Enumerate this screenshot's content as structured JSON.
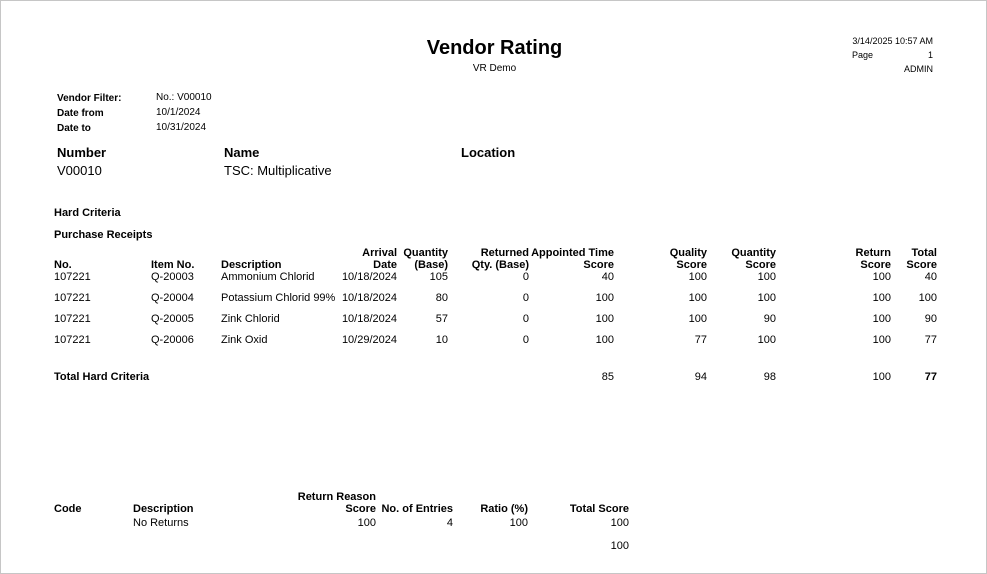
{
  "page": {
    "datetime": "3/14/2025 10:57 AM",
    "page_label": "Page",
    "page_number": "1",
    "username": "ADMIN",
    "title": "Vendor Rating",
    "subtitle": "VR Demo"
  },
  "filters": [
    {
      "label": "Vendor Filter:",
      "value": "No.: V00010"
    },
    {
      "label": "Date from",
      "value": "10/1/2024"
    },
    {
      "label": "Date to",
      "value": "10/31/2024"
    }
  ],
  "vendor": {
    "number_label": "Number",
    "number": "V00010",
    "name_label": "Name",
    "name": "TSC: Multiplicative",
    "location_label": "Location",
    "location": ""
  },
  "hard_criteria": {
    "section_title": "Hard Criteria",
    "subsection_title": "Purchase Receipts",
    "columns": [
      "No.",
      "Item No.",
      "Description",
      "Arrival\nDate",
      "Quantity\n(Base)",
      "Returned\nQty. (Base)",
      "Appointed Time\nScore",
      "Quality\nScore",
      "Quantity\nScore",
      "Return\nScore",
      "Total\nScore"
    ],
    "rows": [
      [
        "107221",
        "Q-20003",
        "Ammonium Chlorid",
        "10/18/2024",
        "105",
        "0",
        "40",
        "100",
        "100",
        "100",
        "40"
      ],
      [
        "107221",
        "Q-20004",
        "Potassium Chlorid 99%",
        "10/18/2024",
        "80",
        "0",
        "100",
        "100",
        "100",
        "100",
        "100"
      ],
      [
        "107221",
        "Q-20005",
        "Zink Chlorid",
        "10/18/2024",
        "57",
        "0",
        "100",
        "100",
        "90",
        "100",
        "90"
      ],
      [
        "107221",
        "Q-20006",
        "Zink Oxid",
        "10/29/2024",
        "10",
        "0",
        "100",
        "77",
        "100",
        "100",
        "77"
      ]
    ],
    "total_label": "Total Hard Criteria",
    "total_values": [
      "85",
      "94",
      "98",
      "100",
      "77"
    ]
  },
  "return_reasons": {
    "columns": [
      "Code",
      "Description",
      "Return Reason\nScore",
      "No. of Entries",
      "Ratio (%)",
      "Total Score"
    ],
    "rows": [
      [
        "",
        "No Returns",
        "100",
        "4",
        "100",
        "100"
      ]
    ],
    "total_value": "100"
  }
}
